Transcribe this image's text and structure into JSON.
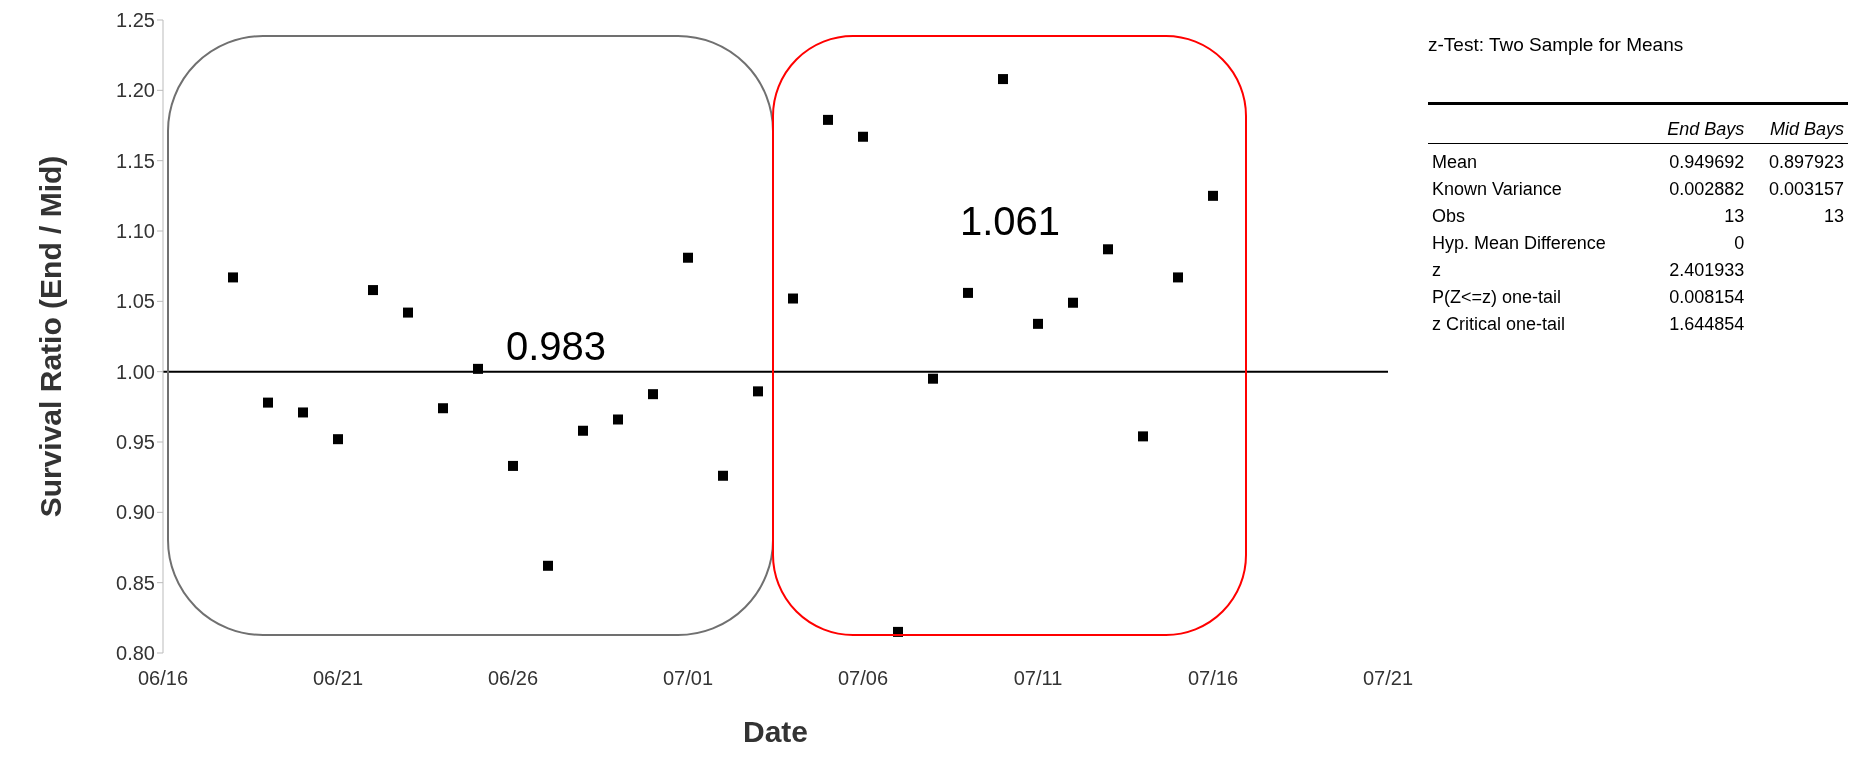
{
  "chart_data": [
    {
      "type": "scatter",
      "xlabel": "Date",
      "ylabel": "Survival Ratio (End / Mid)",
      "x": [
        "--06-18",
        "--06-19",
        "--06-20",
        "--06-21",
        "--06-22",
        "--06-23",
        "--06-24",
        "--06-25",
        "--06-26",
        "--06-27",
        "--06-28",
        "--06-29",
        "--06-30",
        "--07-01",
        "--07-02",
        "--07-03",
        "--07-04",
        "--07-05",
        "--07-06",
        "--07-07",
        "--07-08",
        "--07-09",
        "--07-10",
        "--07-11",
        "--07-12",
        "--07-13",
        "--07-14",
        "--07-15",
        "--07-16"
      ],
      "values": [
        1.067,
        0.978,
        0.971,
        0.952,
        1.058,
        1.042,
        0.974,
        1.002,
        0.933,
        0.862,
        0.958,
        0.966,
        0.984,
        1.081,
        0.926,
        0.986,
        1.052,
        1.179,
        1.167,
        0.815,
        0.995,
        1.056,
        1.208,
        1.034,
        1.049,
        1.087,
        0.954,
        1.067,
        1.125
      ],
      "color": "#000000",
      "marker": "square",
      "xlim": [
        "--06-16",
        "--07-21"
      ],
      "xticks": [
        {
          "value": "--06-16",
          "label": "06/16"
        },
        {
          "value": "--06-21",
          "label": "06/21"
        },
        {
          "value": "--06-26",
          "label": "06/26"
        },
        {
          "value": "--07-01",
          "label": "07/01"
        },
        {
          "value": "--07-06",
          "label": "07/06"
        },
        {
          "value": "--07-11",
          "label": "07/11"
        },
        {
          "value": "--07-16",
          "label": "07/16"
        },
        {
          "value": "--07-21",
          "label": "07/21"
        }
      ],
      "ylim": [
        0.8,
        1.25
      ],
      "yticks": [
        {
          "value": 0.8,
          "label": "0.80"
        },
        {
          "value": 0.85,
          "label": "0.85"
        },
        {
          "value": 0.9,
          "label": "0.90"
        },
        {
          "value": 0.95,
          "label": "0.95"
        },
        {
          "value": 1.0,
          "label": "1.00"
        },
        {
          "value": 1.05,
          "label": "1.05"
        },
        {
          "value": 1.1,
          "label": "1.10"
        },
        {
          "value": 1.15,
          "label": "1.15"
        },
        {
          "value": 1.2,
          "label": "1.20"
        },
        {
          "value": 1.25,
          "label": "1.25"
        }
      ],
      "ref_lines": [
        {
          "axis": "y",
          "value": 1.0,
          "color": "#000000",
          "line_style": "solid"
        }
      ],
      "annotations": [
        "0.983",
        "1.061"
      ]
    },
    {
      "type": "other",
      "title": "z-Test: Two Sample for Means",
      "categories": [
        null,
        "End Bays",
        "Mid Bays"
      ],
      "y_categories": [
        "Mean",
        "Known Variance",
        "Obs",
        "Hyp. Mean Difference",
        "z",
        "P(Z<=z) one-tail",
        "z Critical one-tail"
      ],
      "cell_labels": [
        [
          "0.949692",
          "0.897923"
        ],
        [
          "0.002882",
          "0.003157"
        ],
        [
          "13",
          "13"
        ],
        [
          "0",
          null
        ],
        [
          "2.401933",
          null
        ],
        [
          "0.008154",
          null
        ],
        [
          "1.644854",
          null
        ]
      ]
    }
  ]
}
